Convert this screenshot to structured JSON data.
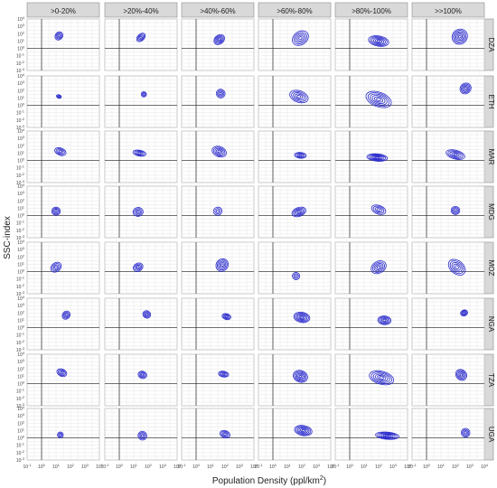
{
  "chart_data": {
    "type": "contour",
    "ylabel": "SSC-index",
    "xlabel": "Population Density (ppl/km",
    "xlabel_sup": "2",
    "xlabel_tail": ")",
    "columns": [
      ">0-20%",
      ">20%-40%",
      ">40%-60%",
      ">60%-80%",
      ">80%-100%",
      ">>100%"
    ],
    "rows": [
      "DZA",
      "ETH",
      "MAR",
      "MDG",
      "MOZ",
      "NGA",
      "TZA",
      "UGA"
    ],
    "x_scale": "log10",
    "x_range": [
      -1,
      4
    ],
    "x_ticks": [
      {
        "exp": "-1",
        "value": 0.1
      },
      {
        "exp": "0",
        "value": 1
      },
      {
        "exp": "1",
        "value": 10
      },
      {
        "exp": "2",
        "value": 100
      },
      {
        "exp": "3",
        "value": 1000
      },
      {
        "exp": "4",
        "value": 10000
      }
    ],
    "y_scale": "log10",
    "y_range": [
      -3,
      4
    ],
    "y_ticks": [
      {
        "exp": "-3",
        "value": 0.001
      },
      {
        "exp": "-2",
        "value": 0.01
      },
      {
        "exp": "-1",
        "value": 0.1
      },
      {
        "exp": "0",
        "value": 1
      },
      {
        "exp": "1",
        "value": 10
      },
      {
        "exp": "2",
        "value": 100
      },
      {
        "exp": "3",
        "value": 1000
      },
      {
        "exp": "4",
        "value": 10000
      }
    ],
    "reference_lines": {
      "x_log10": 0,
      "y_log10": 0
    },
    "contour_color": "#2a2acc",
    "strip_color": "#d9d9d9",
    "panels": [
      [
        {
          "cx": 1.2,
          "cy": 1.7,
          "sx": 0.3,
          "sy": 0.5,
          "a": 50,
          "n": 4
        },
        {
          "cx": 1.5,
          "cy": 1.5,
          "sx": 0.35,
          "sy": 0.45,
          "a": 45,
          "n": 4
        },
        {
          "cx": 1.6,
          "cy": 1.2,
          "sx": 0.4,
          "sy": 0.6,
          "a": 40,
          "n": 5
        },
        {
          "cx": 1.9,
          "cy": 1.4,
          "sx": 0.6,
          "sy": 0.9,
          "a": 35,
          "n": 5
        },
        {
          "cx": 2.0,
          "cy": 1.0,
          "sx": 0.35,
          "sy": 1.4,
          "a": 80,
          "n": 6
        },
        {
          "cx": 2.3,
          "cy": 1.6,
          "sx": 0.55,
          "sy": 1.0,
          "a": 40,
          "n": 6
        }
      ],
      [
        {
          "cx": 1.2,
          "cy": 1.2,
          "sx": 0.12,
          "sy": 0.35,
          "a": 70,
          "n": 3
        },
        {
          "cx": 1.7,
          "cy": 1.5,
          "sx": 0.18,
          "sy": 0.35,
          "a": 65,
          "n": 3
        },
        {
          "cx": 1.7,
          "cy": 1.6,
          "sx": 0.3,
          "sy": 0.6,
          "a": 65,
          "n": 4
        },
        {
          "cx": 1.8,
          "cy": 1.2,
          "sx": 0.4,
          "sy": 1.3,
          "a": 70,
          "n": 5
        },
        {
          "cx": 2.0,
          "cy": 0.8,
          "sx": 0.5,
          "sy": 1.8,
          "a": 70,
          "n": 6
        },
        {
          "cx": 2.7,
          "cy": 2.3,
          "sx": 0.4,
          "sy": 0.7,
          "a": 40,
          "n": 5
        }
      ],
      [
        {
          "cx": 1.3,
          "cy": 1.2,
          "sx": 0.25,
          "sy": 0.8,
          "a": 70,
          "n": 4
        },
        {
          "cx": 1.4,
          "cy": 1.0,
          "sx": 0.2,
          "sy": 0.9,
          "a": 80,
          "n": 4
        },
        {
          "cx": 1.6,
          "cy": 1.2,
          "sx": 0.35,
          "sy": 1.0,
          "a": 70,
          "n": 5
        },
        {
          "cx": 1.9,
          "cy": 0.7,
          "sx": 0.2,
          "sy": 0.8,
          "a": 85,
          "n": 4
        },
        {
          "cx": 1.9,
          "cy": 0.4,
          "sx": 0.25,
          "sy": 1.4,
          "a": 85,
          "n": 6
        },
        {
          "cx": 2.0,
          "cy": 0.8,
          "sx": 0.3,
          "sy": 1.3,
          "a": 75,
          "n": 5
        }
      ],
      [
        {
          "cx": 1.0,
          "cy": 0.6,
          "sx": 0.3,
          "sy": 0.55,
          "a": 0,
          "n": 4
        },
        {
          "cx": 1.3,
          "cy": 0.5,
          "sx": 0.35,
          "sy": 0.6,
          "a": 10,
          "n": 4
        },
        {
          "cx": 1.5,
          "cy": 0.6,
          "sx": 0.3,
          "sy": 0.55,
          "a": 10,
          "n": 3
        },
        {
          "cx": 1.8,
          "cy": 0.5,
          "sx": 0.5,
          "sy": 0.6,
          "a": 20,
          "n": 5
        },
        {
          "cx": 2.0,
          "cy": 0.8,
          "sx": 0.3,
          "sy": 1.0,
          "a": 70,
          "n": 4
        },
        {
          "cx": 2.0,
          "cy": 0.7,
          "sx": 0.3,
          "sy": 0.55,
          "a": 0,
          "n": 4
        }
      ],
      [
        {
          "cx": 1.0,
          "cy": 0.6,
          "sx": 0.4,
          "sy": 0.6,
          "a": 40,
          "n": 4
        },
        {
          "cx": 1.3,
          "cy": 0.6,
          "sx": 0.35,
          "sy": 0.55,
          "a": 30,
          "n": 4
        },
        {
          "cx": 1.8,
          "cy": 0.9,
          "sx": 0.45,
          "sy": 0.8,
          "a": 50,
          "n": 5
        },
        {
          "cx": 1.6,
          "cy": -0.6,
          "sx": 0.25,
          "sy": 0.5,
          "a": 70,
          "n": 3
        },
        {
          "cx": 2.0,
          "cy": 0.6,
          "sx": 0.55,
          "sy": 0.8,
          "a": 30,
          "n": 5
        },
        {
          "cx": 2.1,
          "cy": 0.6,
          "sx": 0.45,
          "sy": 1.3,
          "a": 50,
          "n": 5
        }
      ],
      [
        {
          "cx": 1.7,
          "cy": 1.7,
          "sx": 0.3,
          "sy": 0.5,
          "a": 50,
          "n": 4
        },
        {
          "cx": 1.9,
          "cy": 1.8,
          "sx": 0.25,
          "sy": 0.55,
          "a": 60,
          "n": 4
        },
        {
          "cx": 2.1,
          "cy": 1.5,
          "sx": 0.2,
          "sy": 0.6,
          "a": 75,
          "n": 4
        },
        {
          "cx": 2.0,
          "cy": 1.4,
          "sx": 0.35,
          "sy": 1.1,
          "a": 80,
          "n": 6
        },
        {
          "cx": 2.4,
          "cy": 1.0,
          "sx": 0.3,
          "sy": 0.9,
          "a": 85,
          "n": 5
        },
        {
          "cx": 2.6,
          "cy": 2.0,
          "sx": 0.25,
          "sy": 0.4,
          "a": 20,
          "n": 4
        }
      ],
      [
        {
          "cx": 1.4,
          "cy": 1.5,
          "sx": 0.25,
          "sy": 0.7,
          "a": 65,
          "n": 4
        },
        {
          "cx": 1.6,
          "cy": 1.2,
          "sx": 0.25,
          "sy": 0.6,
          "a": 70,
          "n": 4
        },
        {
          "cx": 1.9,
          "cy": 1.3,
          "sx": 0.2,
          "sy": 0.7,
          "a": 80,
          "n": 4
        },
        {
          "cx": 1.9,
          "cy": 1.0,
          "sx": 0.4,
          "sy": 1.0,
          "a": 70,
          "n": 6
        },
        {
          "cx": 2.2,
          "cy": 0.8,
          "sx": 0.45,
          "sy": 1.7,
          "a": 75,
          "n": 6
        },
        {
          "cx": 2.4,
          "cy": 1.2,
          "sx": 0.35,
          "sy": 0.8,
          "a": 50,
          "n": 5
        }
      ],
      [
        {
          "cx": 1.3,
          "cy": 0.4,
          "sx": 0.2,
          "sy": 0.4,
          "a": 45,
          "n": 3
        },
        {
          "cx": 1.6,
          "cy": 0.3,
          "sx": 0.3,
          "sy": 0.6,
          "a": 45,
          "n": 4
        },
        {
          "cx": 2.0,
          "cy": 0.5,
          "sx": 0.25,
          "sy": 0.7,
          "a": 70,
          "n": 4
        },
        {
          "cx": 2.1,
          "cy": 1.0,
          "sx": 0.35,
          "sy": 1.2,
          "a": 80,
          "n": 6
        },
        {
          "cx": 2.6,
          "cy": 0.3,
          "sx": 0.25,
          "sy": 1.6,
          "a": 85,
          "n": 6
        },
        {
          "cx": 2.7,
          "cy": 0.7,
          "sx": 0.3,
          "sy": 0.6,
          "a": 55,
          "n": 4
        }
      ]
    ]
  }
}
